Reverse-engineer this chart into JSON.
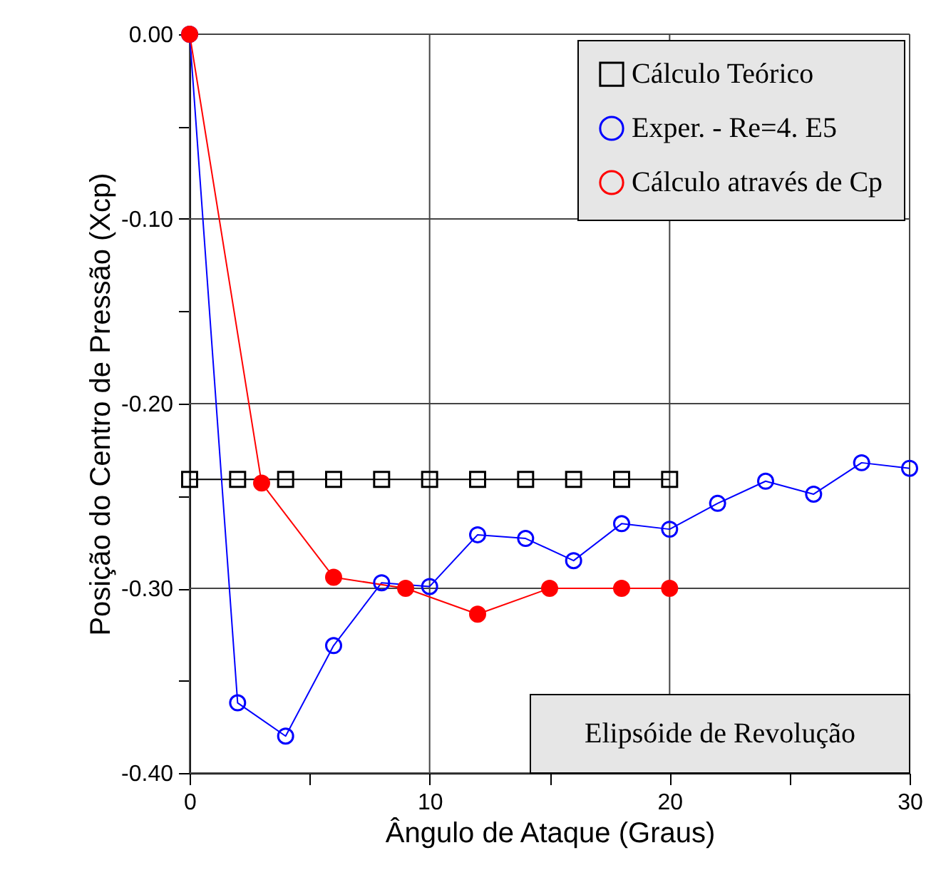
{
  "chart_data": {
    "type": "line",
    "xlabel": "Ângulo de Ataque (Graus)",
    "ylabel": "Posição do Centro de Pressão (Xcp)",
    "xlim": [
      0,
      30
    ],
    "xticks": [
      0,
      {
        "value": 5,
        "label": null
      },
      10,
      {
        "value": 15,
        "label": null
      },
      20,
      {
        "value": 25,
        "label": null
      },
      30
    ],
    "ylim": [
      -0.4,
      0
    ],
    "yticks": [
      {
        "value": 0,
        "label": "0.00"
      },
      {
        "value": -0.05,
        "label": null
      },
      {
        "value": -0.1,
        "label": "-0.10"
      },
      {
        "value": -0.15,
        "label": null
      },
      {
        "value": -0.2,
        "label": "-0.20"
      },
      {
        "value": -0.25,
        "label": null
      },
      {
        "value": -0.3,
        "label": "-0.30"
      },
      {
        "value": -0.35,
        "label": null
      },
      {
        "value": -0.4,
        "label": "-0.40"
      }
    ],
    "grid": true,
    "legend": "top right",
    "annotations": [
      "Elipsóide de Revolução"
    ],
    "series": [
      {
        "name": "Cálculo Teórico",
        "color": "#000000",
        "marker": "square",
        "x": [
          0,
          2,
          4,
          6,
          8,
          10,
          12,
          14,
          16,
          18,
          20
        ],
        "values": [
          -0.241,
          -0.241,
          -0.241,
          -0.241,
          -0.241,
          -0.241,
          -0.241,
          -0.241,
          -0.241,
          -0.241,
          -0.241
        ]
      },
      {
        "name": "Exper. - Re=4. E5",
        "color": "#0000ff",
        "marker": "circle",
        "x": [
          0,
          2,
          4,
          6,
          8,
          10,
          12,
          14,
          16,
          18,
          20,
          22,
          24,
          26,
          28,
          30
        ],
        "values": [
          0,
          -0.362,
          -0.38,
          -0.331,
          -0.297,
          -0.299,
          -0.271,
          -0.273,
          -0.285,
          -0.265,
          -0.268,
          -0.254,
          -0.242,
          -0.249,
          -0.232,
          -0.235
        ]
      },
      {
        "name": "Cálculo através de Cp",
        "color": "#ff0000",
        "marker": "circle",
        "x": [
          0,
          3,
          6,
          9,
          12,
          15,
          18,
          20
        ],
        "values": [
          0,
          -0.243,
          -0.294,
          -0.3,
          -0.314,
          -0.3,
          -0.3,
          -0.3
        ]
      }
    ]
  }
}
